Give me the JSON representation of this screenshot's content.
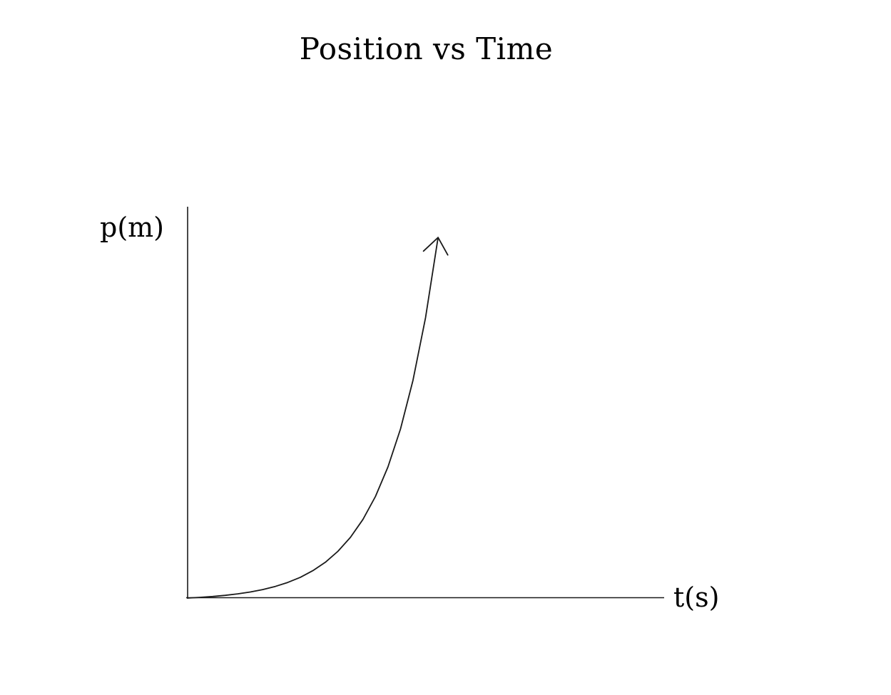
{
  "chart_data": {
    "type": "line",
    "title": "Position vs Time",
    "xlabel": "t(s)",
    "ylabel": "p(m)",
    "x": [
      0,
      0.25,
      0.5,
      0.75,
      1,
      1.25,
      1.5,
      1.75,
      2,
      2.25,
      2.5,
      2.75,
      3,
      3.25,
      3.5,
      3.75,
      4,
      4.25,
      4.5,
      4.75,
      5
    ],
    "y": [
      0,
      0.28,
      0.65,
      1.12,
      1.72,
      2.49,
      3.48,
      4.76,
      6.39,
      8.49,
      11.18,
      14.64,
      19.09,
      24.79,
      32.12,
      41.52,
      53.6,
      69.11,
      89.02,
      114.58,
      147.41
    ],
    "xlim": [
      0,
      9.5
    ],
    "ylim": [
      0,
      160
    ],
    "grid": false,
    "tick_labels": false,
    "legend": false,
    "arrow_at_curve_end": true,
    "line_color": "#1a1a1a",
    "axis_color": "#1a1a1a",
    "background_color": "#ffffff",
    "text_color": "#000000"
  }
}
